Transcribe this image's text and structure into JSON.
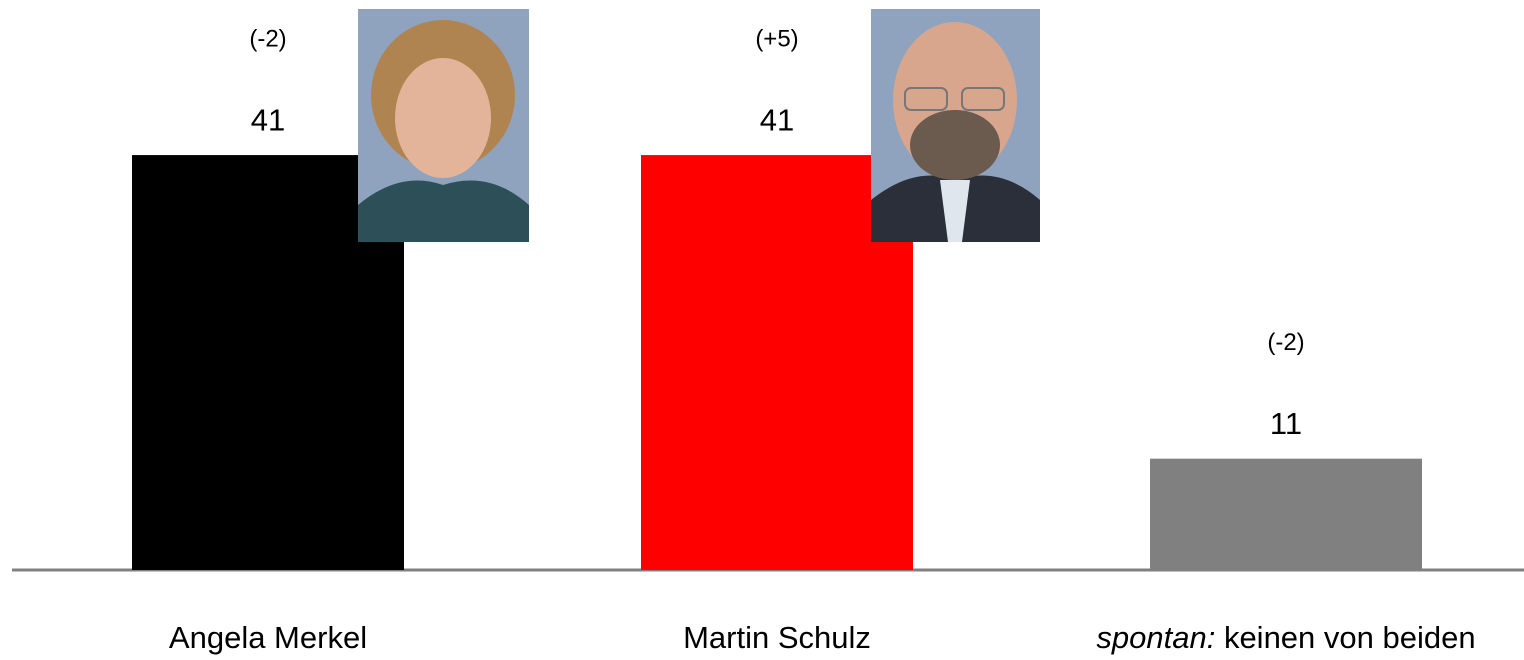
{
  "chart_data": {
    "type": "bar",
    "categories": [
      "Angela Merkel",
      "Martin Schulz",
      "spontan: keinen von beiden"
    ],
    "values": [
      41,
      41,
      11
    ],
    "colors": [
      "#000000",
      "#ff0000",
      "#808080"
    ],
    "annotations": [
      "(-2)",
      "(+5)",
      "(-2)"
    ]
  }
}
